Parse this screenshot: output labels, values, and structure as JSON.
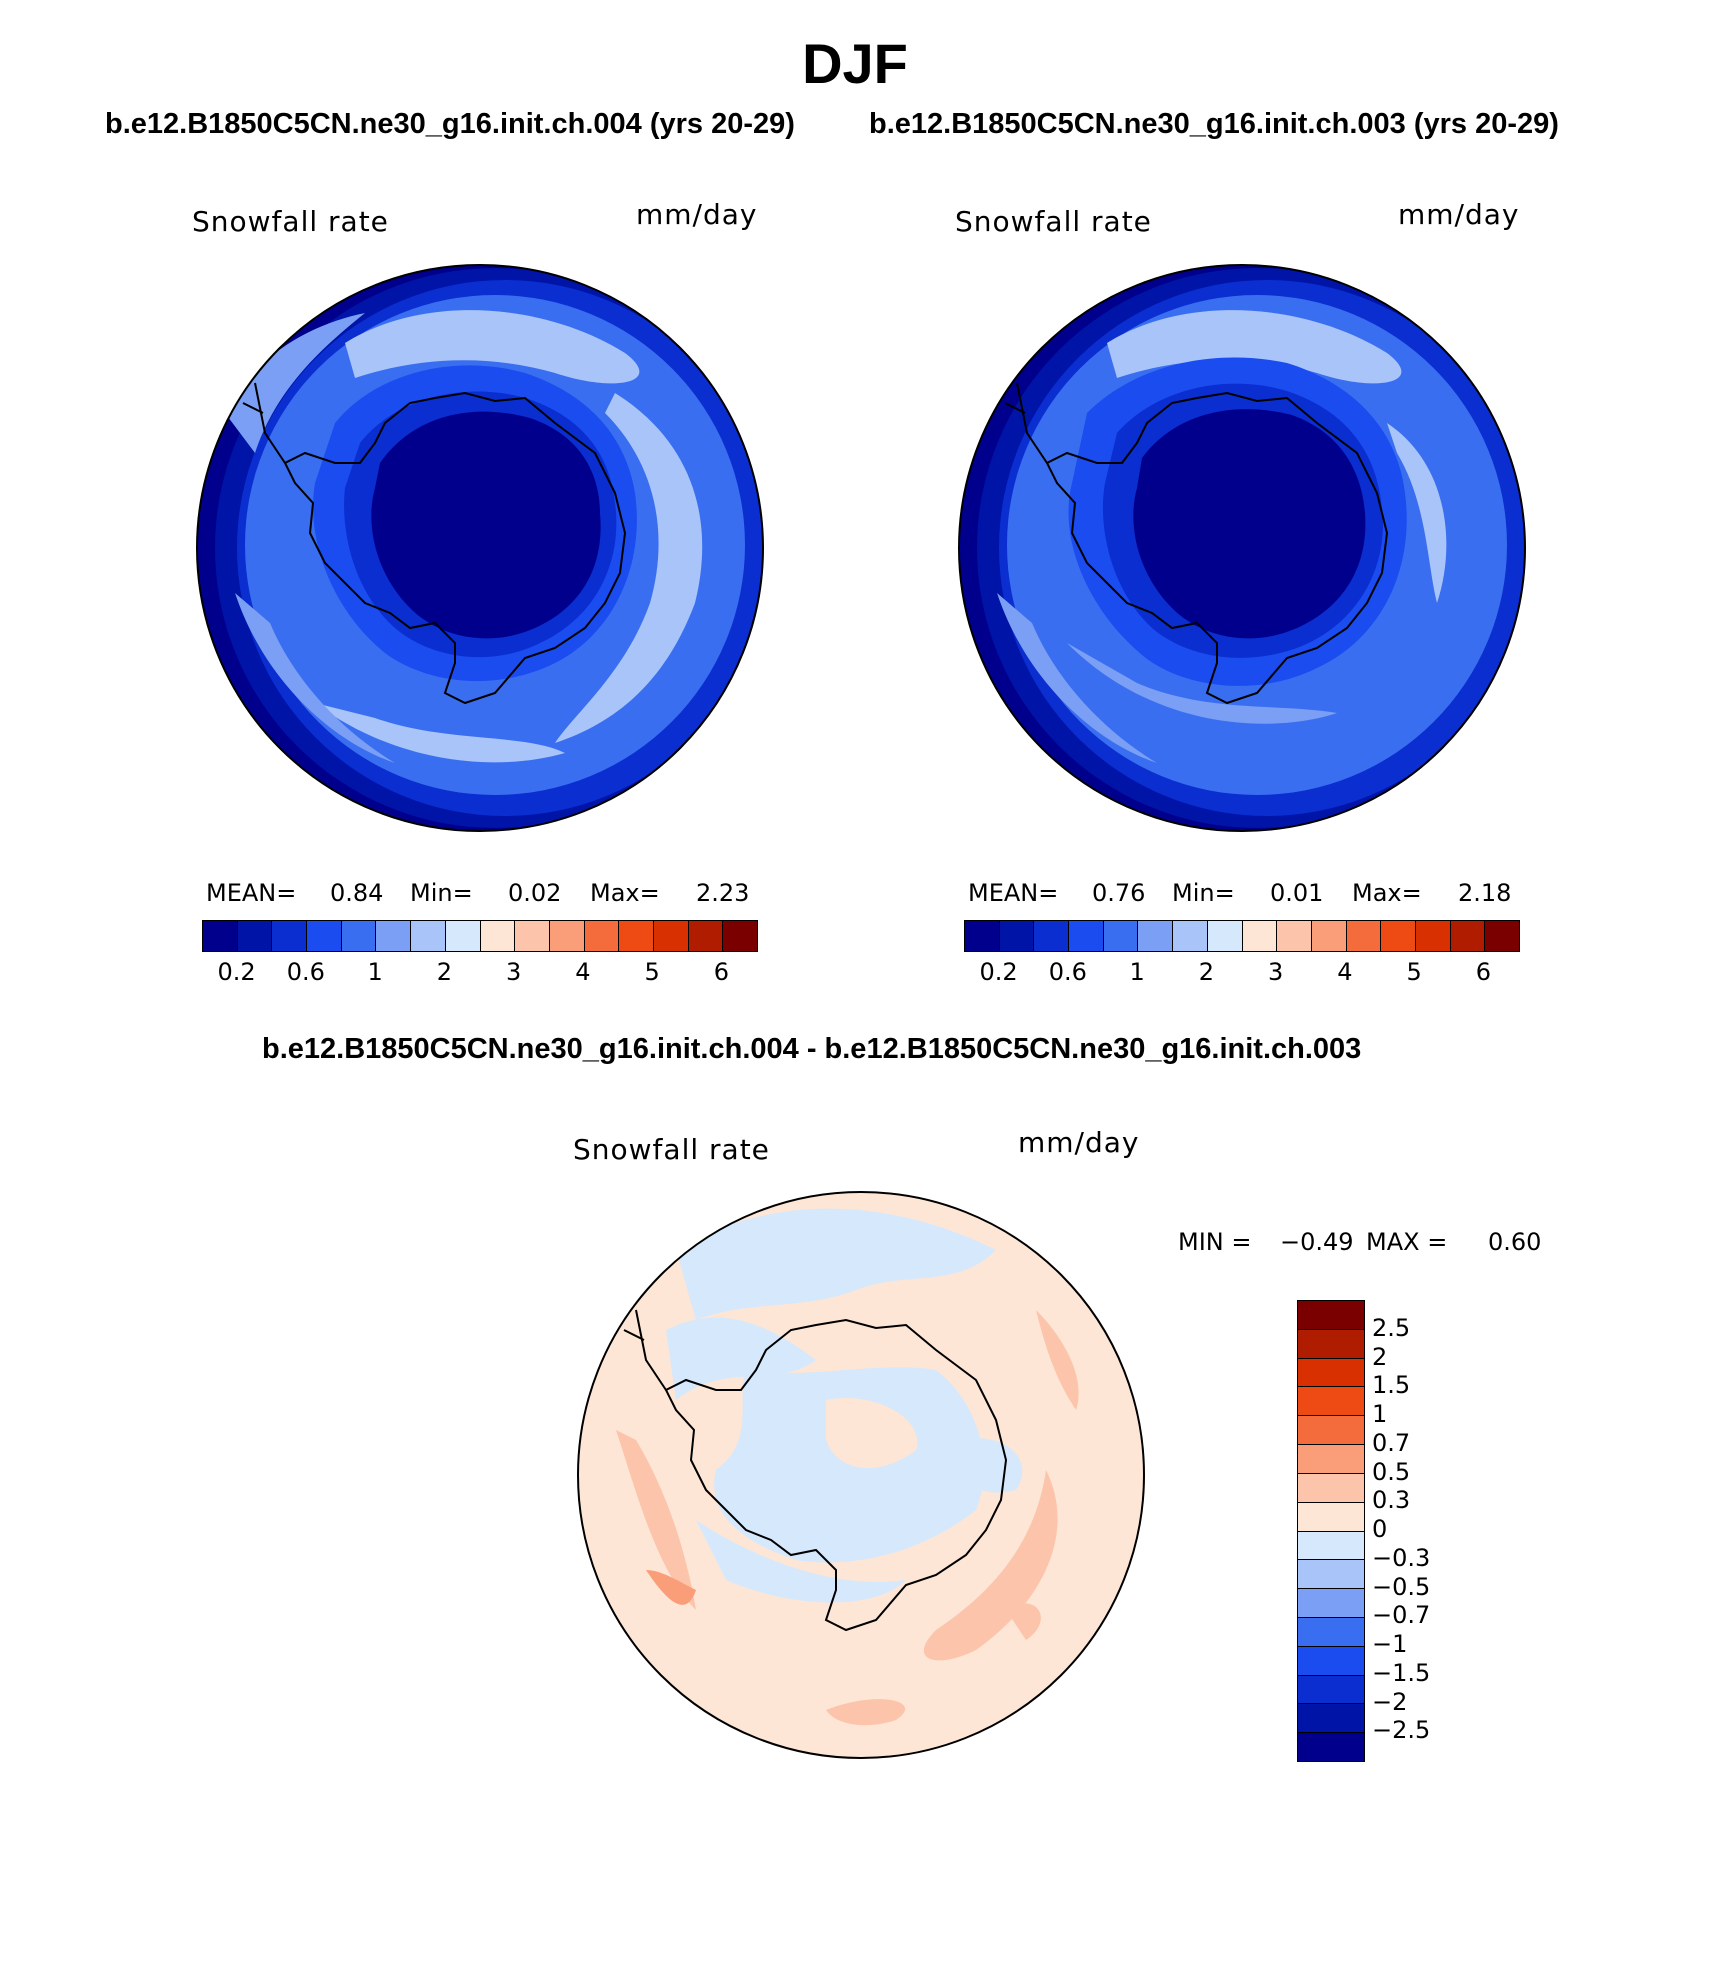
{
  "page": {
    "title": "DJF",
    "panel1_header": "b.e12.B1850C5CN.ne30_g16.init.ch.004 (yrs 20-29)",
    "panel2_header": "b.e12.B1850C5CN.ne30_g16.init.ch.003 (yrs 20-29)",
    "diff_header": "b.e12.B1850C5CN.ne30_g16.init.ch.004 - b.e12.B1850C5CN.ne30_g16.init.ch.003"
  },
  "panels": [
    {
      "variable": "Snowfall rate",
      "units": "mm/day",
      "mean_label": "MEAN=",
      "mean_value": "0.84",
      "min_label": "Min=",
      "min_value": "0.02",
      "max_label": "Max=",
      "max_value": "2.23"
    },
    {
      "variable": "Snowfall rate",
      "units": "mm/day",
      "mean_label": "MEAN=",
      "mean_value": "0.76",
      "min_label": "Min=",
      "min_value": "0.01",
      "max_label": "Max=",
      "max_value": "2.18"
    }
  ],
  "colorbar": {
    "tick_labels": [
      "0.2",
      "0.6",
      "1",
      "2",
      "3",
      "4",
      "5",
      "6"
    ],
    "colors": [
      "#00008c",
      "#0014a8",
      "#0a2ed0",
      "#1a4cf0",
      "#3a6ef0",
      "#7a9ff4",
      "#a8c4f8",
      "#d6e8fc",
      "#fde6d6",
      "#fcc4aa",
      "#f99e78",
      "#f46c3c",
      "#ee4a14",
      "#d83000",
      "#b01c00",
      "#7a0000"
    ]
  },
  "diff_panel": {
    "variable": "Snowfall rate",
    "units": "mm/day",
    "min_label": "MIN =",
    "min_value": "−0.49",
    "max_label": "MAX =",
    "max_value": "0.60"
  },
  "diff_colorbar": {
    "tick_labels": [
      "2.5",
      "2",
      "1.5",
      "1",
      "0.7",
      "0.5",
      "0.3",
      "0",
      "−0.3",
      "−0.5",
      "−0.7",
      "−1",
      "−1.5",
      "−2",
      "−2.5"
    ],
    "colors": [
      "#7a0000",
      "#b01c00",
      "#d83000",
      "#ee4a14",
      "#f46c3c",
      "#f99e78",
      "#fcc4aa",
      "#fde6d6",
      "#d6e8fc",
      "#a8c4f8",
      "#7a9ff4",
      "#3a6ef0",
      "#1a4cf0",
      "#0a2ed0",
      "#0014a8",
      "#00008c"
    ]
  }
}
